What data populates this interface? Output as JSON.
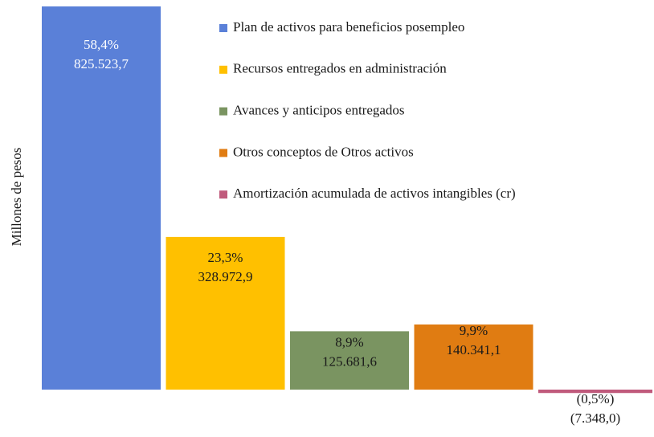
{
  "chart_data": {
    "type": "bar",
    "y_label": "Millones  de pesos",
    "series": [
      {
        "name": "Plan de activos para beneficios posempleo",
        "color": "#5a80d8",
        "values": [
          825523.7
        ],
        "value_labels": [
          "825.523,7"
        ],
        "percent": [
          58.4
        ],
        "percent_labels": [
          "58,4%"
        ]
      },
      {
        "name": "Recursos entregados en administración",
        "color": "#ffc000",
        "values": [
          328972.9
        ],
        "value_labels": [
          "328.972,9"
        ],
        "percent": [
          23.3
        ],
        "percent_labels": [
          "23,3%"
        ]
      },
      {
        "name": "Avances y anticipos entregados",
        "color": "#7a9461",
        "values": [
          125681.6
        ],
        "value_labels": [
          "125.681,6"
        ],
        "percent": [
          8.9
        ],
        "percent_labels": [
          "8,9%"
        ]
      },
      {
        "name": "Otros conceptos de Otros activos",
        "color": "#e07c12",
        "values": [
          140341.1
        ],
        "value_labels": [
          "140.341,1"
        ],
        "percent": [
          9.9
        ],
        "percent_labels": [
          "9,9%"
        ]
      },
      {
        "name": "Amortización acumulada de activos intangibles (cr)",
        "color": "#c05a7c",
        "values": [
          -7348.0
        ],
        "value_labels": [
          "(7.348,0)"
        ],
        "percent": [
          -0.5
        ],
        "percent_labels": [
          "(0,5%)"
        ]
      }
    ]
  }
}
